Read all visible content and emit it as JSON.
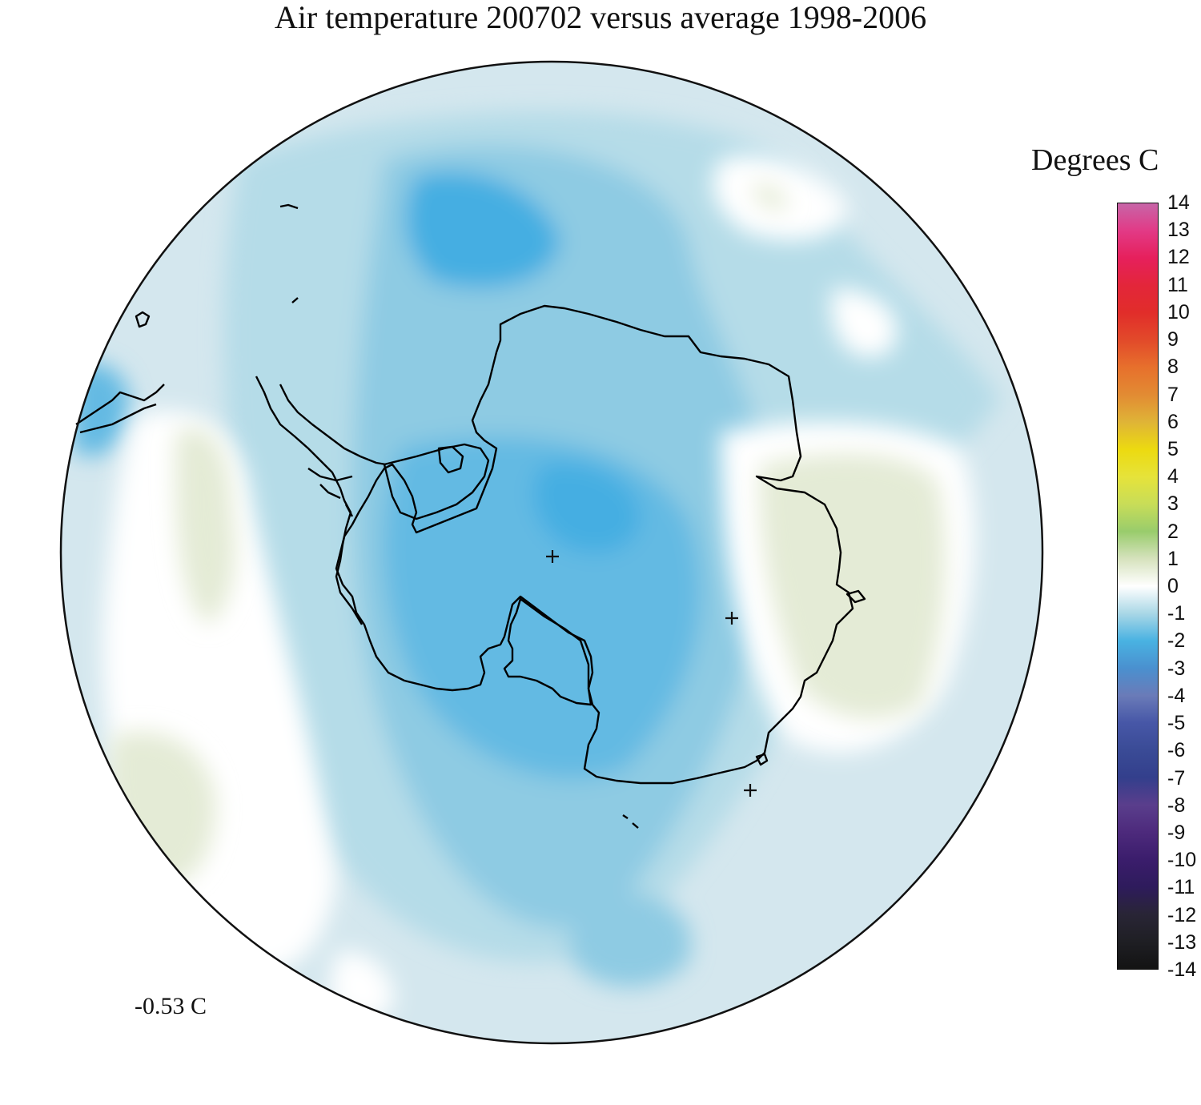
{
  "title": "Air temperature 200702 versus average 1998-2006",
  "legend": {
    "title": "Degrees C",
    "ticks": [
      "14",
      "13",
      "12",
      "11",
      "10",
      "9",
      "8",
      "7",
      "6",
      "5",
      "4",
      "3",
      "2",
      "1",
      "0",
      "-1",
      "-2",
      "-3",
      "-4",
      "-5",
      "-6",
      "-7",
      "-8",
      "-9",
      "-10",
      "-11",
      "-12",
      "-13",
      "-14"
    ],
    "range": [
      -14,
      14
    ],
    "colors": {
      "14": "#c765a8",
      "13": "#e23a86",
      "12": "#e6205c",
      "11": "#e3263a",
      "10": "#e12d2a",
      "9": "#e24a2a",
      "8": "#e7702c",
      "7": "#e28b33",
      "6": "#dfb437",
      "5": "#ecda10",
      "4": "#e6e33a",
      "3": "#c8dd58",
      "2": "#99cc6c",
      "1": "#d6e2bd",
      "0": "#ffffff",
      "-1": "#a9d7e6",
      "-2": "#49b2e2",
      "-3": "#4a90cf",
      "-4": "#6a7bb8",
      "-5": "#4757a7",
      "-6": "#3a4b96",
      "-7": "#333f8c",
      "-8": "#5a3e8c",
      "-9": "#4d2a7c",
      "-10": "#3b1d6c",
      "-11": "#2e1b5c",
      "-12": "#292536",
      "-13": "#1f1f24",
      "-14": "#131313"
    }
  },
  "mean_anomaly": "-0.53 C",
  "map": {
    "projection": "south polar stereographic",
    "field_colors": {
      "neutral": "#ffffff",
      "warm_slight": "#e4ebd6",
      "cool_slight": "#d4e7ee",
      "cool_1": "#b5dce8",
      "cool_2": "#8ecbe3",
      "cool_3": "#63bae3",
      "cool_4": "#45aee2"
    },
    "coastline_color": "#000000"
  }
}
